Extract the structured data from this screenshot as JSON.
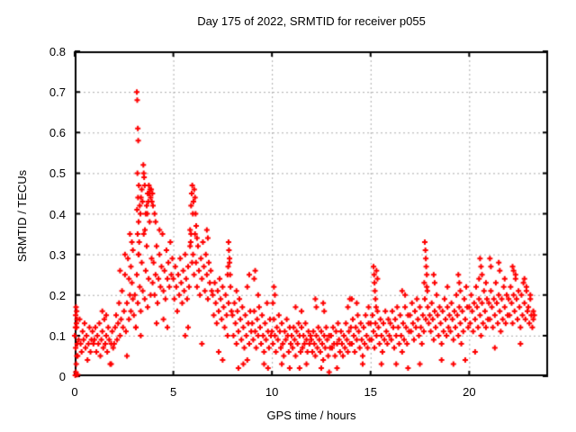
{
  "window": {
    "background": "#ffffff"
  },
  "colors": {
    "marker": "#ff0000",
    "grid": "#ababab",
    "border": "#000000",
    "text": "#000000"
  },
  "chart_data": {
    "type": "scatter",
    "title": "Day 175 of 2022, SRMTID for receiver p055",
    "xlabel": "GPS time / hours",
    "ylabel": "SRMTID / TECUs",
    "xlim": [
      0,
      24
    ],
    "ylim": [
      0,
      0.8
    ],
    "x_tick_values": [
      0,
      5,
      10,
      15,
      20
    ],
    "x_tick_labels": [
      "0",
      "5",
      "10",
      "15",
      "20"
    ],
    "y_tick_values": [
      0,
      0.1,
      0.2,
      0.3,
      0.4,
      0.5,
      0.6,
      0.7,
      0.8
    ],
    "y_tick_labels": [
      "0",
      "0.1",
      "0.2",
      "0.3",
      "0.4",
      "0.5",
      "0.6",
      "0.7",
      "0.8"
    ],
    "grid": "dashed gray lines at every major tick",
    "legend": "none",
    "marker": "plus",
    "marker_size_px": 7,
    "series": [
      {
        "name": "SRMTID",
        "color": "#ff0000",
        "base": {
          "x_start": 0.0,
          "x_step": 0.05,
          "y": [
            0.1,
            0.07,
            0.12,
            0.05,
            0.09,
            0.14,
            0.08,
            0.06,
            0.11,
            0.09,
            0.13,
            0.07,
            0.1,
            0.04,
            0.08,
            0.12,
            0.06,
            0.09,
            0.11,
            0.08,
            0.09,
            0.12,
            0.06,
            0.1,
            0.08,
            0.13,
            0.05,
            0.09,
            0.11,
            0.07,
            0.14,
            0.08,
            0.1,
            0.06,
            0.12,
            0.09,
            0.03,
            0.08,
            0.11,
            0.07,
            0.08,
            0.12,
            0.15,
            0.09,
            0.13,
            0.18,
            0.1,
            0.14,
            0.21,
            0.12,
            0.16,
            0.25,
            0.11,
            0.18,
            0.29,
            0.14,
            0.2,
            0.16,
            0.23,
            0.19,
            0.15,
            0.2,
            0.12,
            0.25,
            0.18,
            0.3,
            0.22,
            0.16,
            0.28,
            0.21,
            0.35,
            0.19,
            0.26,
            0.32,
            0.17,
            0.24,
            0.38,
            0.2,
            0.29,
            0.23,
            0.28,
            0.2,
            0.25,
            0.32,
            0.18,
            0.24,
            0.3,
            0.22,
            0.27,
            0.35,
            0.21,
            0.26,
            0.19,
            0.31,
            0.24,
            0.28,
            0.22,
            0.33,
            0.25,
            0.29,
            0.24,
            0.19,
            0.27,
            0.22,
            0.16,
            0.25,
            0.2,
            0.29,
            0.23,
            0.18,
            0.26,
            0.21,
            0.3,
            0.24,
            0.19,
            0.27,
            0.22,
            0.32,
            0.35,
            0.28,
            0.3,
            0.25,
            0.35,
            0.28,
            0.22,
            0.32,
            0.26,
            0.2,
            0.29,
            0.24,
            0.33,
            0.27,
            0.21,
            0.3,
            0.25,
            0.19,
            0.28,
            0.23,
            0.26,
            0.21,
            0.2,
            0.15,
            0.23,
            0.18,
            0.13,
            0.21,
            0.16,
            0.24,
            0.19,
            0.14,
            0.22,
            0.17,
            0.12,
            0.2,
            0.15,
            0.25,
            0.18,
            0.28,
            0.22,
            0.16,
            0.15,
            0.1,
            0.18,
            0.13,
            0.08,
            0.16,
            0.11,
            0.19,
            0.14,
            0.09,
            0.17,
            0.12,
            0.07,
            0.15,
            0.1,
            0.04,
            0.13,
            0.08,
            0.16,
            0.11,
            0.13,
            0.09,
            0.16,
            0.11,
            0.07,
            0.14,
            0.1,
            0.17,
            0.12,
            0.08,
            0.15,
            0.1,
            0.06,
            0.13,
            0.09,
            0.18,
            0.11,
            0.07,
            0.14,
            0.1,
            0.11,
            0.08,
            0.14,
            0.1,
            0.06,
            0.12,
            0.09,
            0.15,
            0.11,
            0.07,
            0.13,
            0.08,
            0.05,
            0.11,
            0.09,
            0.14,
            0.1,
            0.06,
            0.12,
            0.08,
            0.1,
            0.07,
            0.12,
            0.09,
            0.05,
            0.11,
            0.08,
            0.13,
            0.1,
            0.06,
            0.12,
            0.07,
            0.1,
            0.08,
            0.13,
            0.09,
            0.06,
            0.11,
            0.08,
            0.1,
            0.09,
            0.06,
            0.11,
            0.08,
            0.05,
            0.1,
            0.07,
            0.12,
            0.09,
            0.06,
            0.11,
            0.08,
            0.04,
            0.1,
            0.07,
            0.12,
            0.09,
            0.05,
            0.1,
            0.07,
            0.1,
            0.07,
            0.12,
            0.08,
            0.05,
            0.11,
            0.08,
            0.13,
            0.09,
            0.06,
            0.11,
            0.08,
            0.05,
            0.1,
            0.07,
            0.13,
            0.09,
            0.06,
            0.11,
            0.08,
            0.12,
            0.08,
            0.14,
            0.1,
            0.06,
            0.12,
            0.09,
            0.15,
            0.11,
            0.07,
            0.13,
            0.09,
            0.05,
            0.12,
            0.08,
            0.15,
            0.1,
            0.07,
            0.13,
            0.09,
            0.13,
            0.09,
            0.15,
            0.11,
            0.07,
            0.13,
            0.1,
            0.16,
            0.12,
            0.08,
            0.14,
            0.1,
            0.06,
            0.13,
            0.09,
            0.16,
            0.11,
            0.08,
            0.14,
            0.1,
            0.13,
            0.09,
            0.16,
            0.12,
            0.07,
            0.14,
            0.1,
            0.17,
            0.12,
            0.08,
            0.15,
            0.1,
            0.06,
            0.13,
            0.09,
            0.17,
            0.12,
            0.08,
            0.15,
            0.11,
            0.15,
            0.11,
            0.18,
            0.13,
            0.09,
            0.16,
            0.12,
            0.19,
            0.14,
            0.1,
            0.17,
            0.12,
            0.08,
            0.15,
            0.11,
            0.19,
            0.14,
            0.22,
            0.17,
            0.13,
            0.15,
            0.11,
            0.18,
            0.14,
            0.09,
            0.16,
            0.12,
            0.2,
            0.15,
            0.1,
            0.17,
            0.13,
            0.08,
            0.16,
            0.11,
            0.19,
            0.14,
            0.1,
            0.17,
            0.12,
            0.15,
            0.11,
            0.18,
            0.14,
            0.09,
            0.16,
            0.12,
            0.2,
            0.15,
            0.1,
            0.17,
            0.13,
            0.08,
            0.16,
            0.11,
            0.19,
            0.14,
            0.22,
            0.17,
            0.12,
            0.17,
            0.13,
            0.2,
            0.16,
            0.11,
            0.18,
            0.14,
            0.22,
            0.17,
            0.12,
            0.19,
            0.15,
            0.1,
            0.18,
            0.13,
            0.21,
            0.16,
            0.12,
            0.19,
            0.14,
            0.18,
            0.14,
            0.21,
            0.17,
            0.12,
            0.19,
            0.15,
            0.23,
            0.18,
            0.13,
            0.2,
            0.16,
            0.11,
            0.19,
            0.14,
            0.22,
            0.17,
            0.13,
            0.2,
            0.15,
            0.19,
            0.15,
            0.22,
            0.18,
            0.13,
            0.2,
            0.16,
            0.24,
            0.19,
            0.14,
            0.21,
            0.17,
            0.12,
            0.2,
            0.15,
            0.23,
            0.18,
            0.14,
            0.21,
            0.16,
            0.17,
            0.13,
            0.19,
            0.15,
            0.12,
            0.16
          ]
        },
        "extra_points": [
          [
            0.03,
            0.002
          ],
          [
            0.06,
            0.01
          ],
          [
            0.08,
            0.03
          ],
          [
            0.05,
            0.15
          ],
          [
            0.07,
            0.17
          ],
          [
            0.09,
            0.13
          ],
          [
            0.04,
            0.12
          ],
          [
            0.1,
            0.16
          ],
          [
            0.12,
            0.14
          ],
          [
            0.11,
            0.05
          ],
          [
            0.13,
            0.08
          ],
          [
            0.15,
            0.004
          ],
          [
            1.4,
            0.16
          ],
          [
            1.6,
            0.15
          ],
          [
            1.85,
            0.03
          ],
          [
            2.3,
            0.26
          ],
          [
            2.55,
            0.3
          ],
          [
            2.65,
            0.05
          ],
          [
            2.75,
            0.24
          ],
          [
            2.8,
            0.35
          ],
          [
            2.85,
            0.27
          ],
          [
            2.9,
            0.33
          ],
          [
            2.95,
            0.31
          ],
          [
            3.1,
            0.12
          ],
          [
            3.15,
            0.7
          ],
          [
            3.17,
            0.68
          ],
          [
            3.2,
            0.61
          ],
          [
            3.22,
            0.58
          ],
          [
            3.18,
            0.5
          ],
          [
            3.25,
            0.47
          ],
          [
            3.21,
            0.44
          ],
          [
            3.16,
            0.41
          ],
          [
            3.24,
            0.38
          ],
          [
            3.19,
            0.35
          ],
          [
            3.27,
            0.33
          ],
          [
            3.23,
            0.3
          ],
          [
            3.3,
            0.42
          ],
          [
            3.33,
            0.4
          ],
          [
            3.35,
            0.1
          ],
          [
            3.36,
            0.44
          ],
          [
            3.4,
            0.46
          ],
          [
            3.44,
            0.43
          ],
          [
            3.48,
            0.52
          ],
          [
            3.5,
            0.5
          ],
          [
            3.52,
            0.49
          ],
          [
            3.55,
            0.47
          ],
          [
            3.56,
            0.36
          ],
          [
            3.6,
            0.4
          ],
          [
            3.65,
            0.42
          ],
          [
            3.68,
            0.4
          ],
          [
            3.7,
            0.45
          ],
          [
            3.73,
            0.43
          ],
          [
            3.76,
            0.47
          ],
          [
            3.79,
            0.45
          ],
          [
            3.82,
            0.46
          ],
          [
            3.85,
            0.44
          ],
          [
            3.88,
            0.46
          ],
          [
            3.91,
            0.43
          ],
          [
            3.94,
            0.45
          ],
          [
            3.97,
            0.42
          ],
          [
            4.05,
            0.4
          ],
          [
            4.1,
            0.38
          ],
          [
            4.15,
            0.13
          ],
          [
            4.3,
            0.36
          ],
          [
            4.5,
            0.14
          ],
          [
            4.7,
            0.12
          ],
          [
            5.6,
            0.1
          ],
          [
            5.75,
            0.12
          ],
          [
            5.85,
            0.36
          ],
          [
            5.88,
            0.33
          ],
          [
            5.9,
            0.42
          ],
          [
            5.93,
            0.45
          ],
          [
            5.96,
            0.47
          ],
          [
            5.99,
            0.4
          ],
          [
            6.02,
            0.43
          ],
          [
            6.06,
            0.46
          ],
          [
            6.1,
            0.44
          ],
          [
            6.13,
            0.4
          ],
          [
            6.16,
            0.37
          ],
          [
            6.2,
            0.34
          ],
          [
            6.45,
            0.08
          ],
          [
            6.7,
            0.36
          ],
          [
            6.75,
            0.34
          ],
          [
            7.3,
            0.06
          ],
          [
            7.5,
            0.04
          ],
          [
            7.75,
            0.1
          ],
          [
            7.78,
            0.27
          ],
          [
            7.8,
            0.33
          ],
          [
            7.82,
            0.31
          ],
          [
            7.85,
            0.29
          ],
          [
            7.88,
            0.25
          ],
          [
            8.2,
            0.21
          ],
          [
            8.3,
            0.02
          ],
          [
            8.55,
            0.03
          ],
          [
            8.75,
            0.22
          ],
          [
            8.85,
            0.25
          ],
          [
            9.1,
            0.24
          ],
          [
            9.15,
            0.26
          ],
          [
            9.3,
            0.2
          ],
          [
            9.6,
            0.03
          ],
          [
            9.8,
            0.02
          ],
          [
            10.05,
            0.18
          ],
          [
            10.1,
            0.22
          ],
          [
            10.15,
            0.2
          ],
          [
            10.5,
            0.03
          ],
          [
            10.9,
            0.02
          ],
          [
            11.2,
            0.17
          ],
          [
            11.4,
            0.02
          ],
          [
            11.5,
            0.16
          ],
          [
            11.75,
            0.03
          ],
          [
            12.2,
            0.19
          ],
          [
            12.25,
            0.17
          ],
          [
            12.5,
            0.02
          ],
          [
            12.6,
            0.18
          ],
          [
            12.65,
            0.16
          ],
          [
            12.9,
            0.01
          ],
          [
            13.3,
            0.02
          ],
          [
            13.85,
            0.17
          ],
          [
            13.95,
            0.19
          ],
          [
            14.05,
            0.19
          ],
          [
            14.3,
            0.18
          ],
          [
            14.6,
            0.03
          ],
          [
            14.9,
            0.17
          ],
          [
            15.15,
            0.27
          ],
          [
            15.18,
            0.25
          ],
          [
            15.2,
            0.23
          ],
          [
            15.22,
            0.21
          ],
          [
            15.25,
            0.19
          ],
          [
            15.28,
            0.17
          ],
          [
            15.3,
            0.26
          ],
          [
            15.35,
            0.24
          ],
          [
            15.55,
            0.03
          ],
          [
            16.3,
            0.03
          ],
          [
            16.6,
            0.21
          ],
          [
            16.75,
            0.2
          ],
          [
            16.9,
            0.02
          ],
          [
            17.5,
            0.03
          ],
          [
            17.72,
            0.23
          ],
          [
            17.75,
            0.33
          ],
          [
            17.78,
            0.31
          ],
          [
            17.8,
            0.29
          ],
          [
            17.82,
            0.27
          ],
          [
            17.85,
            0.25
          ],
          [
            17.88,
            0.21
          ],
          [
            18.2,
            0.25
          ],
          [
            18.25,
            0.23
          ],
          [
            18.6,
            0.04
          ],
          [
            18.9,
            0.22
          ],
          [
            19.2,
            0.03
          ],
          [
            19.45,
            0.25
          ],
          [
            19.5,
            0.23
          ],
          [
            19.55,
            0.21
          ],
          [
            19.8,
            0.04
          ],
          [
            20.3,
            0.06
          ],
          [
            20.5,
            0.24
          ],
          [
            20.55,
            0.29
          ],
          [
            20.6,
            0.27
          ],
          [
            20.65,
            0.25
          ],
          [
            20.85,
            0.23
          ],
          [
            21.05,
            0.29
          ],
          [
            21.1,
            0.27
          ],
          [
            21.3,
            0.07
          ],
          [
            21.5,
            0.28
          ],
          [
            21.55,
            0.26
          ],
          [
            21.8,
            0.24
          ],
          [
            22.2,
            0.27
          ],
          [
            22.25,
            0.26
          ],
          [
            22.35,
            0.25
          ],
          [
            22.6,
            0.08
          ],
          [
            22.8,
            0.24
          ],
          [
            22.9,
            0.22
          ],
          [
            23.1,
            0.2
          ],
          [
            23.25,
            0.14
          ],
          [
            23.3,
            0.15
          ]
        ]
      }
    ]
  }
}
